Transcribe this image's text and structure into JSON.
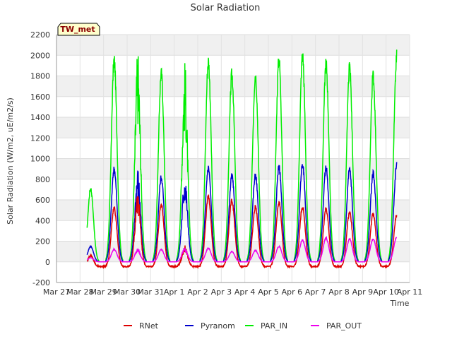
{
  "chart_data": {
    "type": "line",
    "title": "Solar Radiation",
    "badge": "TW_met",
    "xlabel": "Time",
    "ylabel": "Solar Radiation (W/m2, uE/m2/s)",
    "xlim": [
      0,
      15
    ],
    "ylim": [
      -200,
      2200
    ],
    "yticks": [
      -200,
      0,
      200,
      400,
      600,
      800,
      1000,
      1200,
      1400,
      1600,
      1800,
      2000,
      2200
    ],
    "xtick_labels": [
      "Mar 27",
      "Mar 28",
      "Mar 29",
      "Mar 30",
      "Mar 31",
      "Apr 1",
      "Apr 2",
      "Apr 3",
      "Apr 4",
      "Apr 5",
      "Apr 6",
      "Apr 7",
      "Apr 8",
      "Apr 9",
      "Apr 10",
      "Apr 11"
    ],
    "x_start_day": 1.3,
    "x_end_day": 14.45,
    "day_peak_times": [
      1.45,
      2.45,
      3.45,
      4.45,
      5.45,
      6.45,
      7.45,
      8.45,
      9.45,
      10.45,
      11.45,
      12.45,
      13.45,
      14.45
    ],
    "series": [
      {
        "name": "RNet",
        "color": "#dd0000",
        "peaks": [
          60,
          520,
          560,
          550,
          120,
          630,
          600,
          530,
          570,
          530,
          510,
          480,
          460,
          450
        ],
        "night": -45
      },
      {
        "name": "Pyranom",
        "color": "#0000cc",
        "peaks": [
          150,
          900,
          770,
          820,
          720,
          910,
          830,
          840,
          920,
          940,
          910,
          890,
          850,
          930
        ],
        "night": 0
      },
      {
        "name": "PAR_IN",
        "color": "#00ee00",
        "peaks": [
          710,
          1950,
          1700,
          1820,
          1600,
          1940,
          1810,
          1810,
          1960,
          2000,
          1920,
          1870,
          1800,
          1980
        ],
        "night": 0
      },
      {
        "name": "PAR_OUT",
        "color": "#ee00ee",
        "peaks": [
          40,
          120,
          110,
          120,
          120,
          130,
          100,
          110,
          150,
          210,
          230,
          220,
          220,
          240
        ],
        "night": 0
      }
    ],
    "grid": true,
    "legend_position": "bottom"
  }
}
